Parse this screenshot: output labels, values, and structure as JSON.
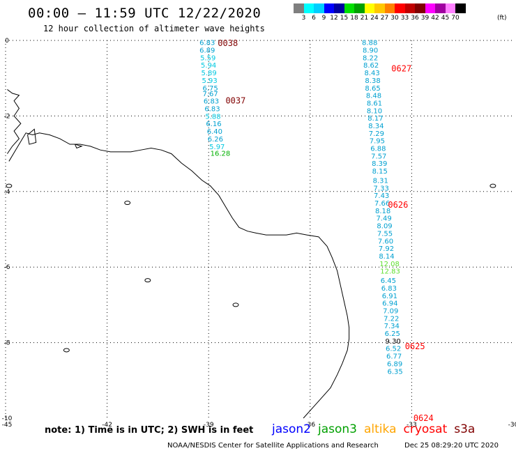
{
  "header": {
    "title": "00:00 — 11:59 UTC 12/22/2020",
    "subtitle": "12 hour collection of altimeter wave heights"
  },
  "legend": {
    "unit": "(ft)",
    "colors": [
      "#7f7f7f",
      "#00ffff",
      "#00cfff",
      "#0000ff",
      "#0000a0",
      "#00e000",
      "#00a000",
      "#ffff00",
      "#ffc800",
      "#ff8000",
      "#ff0000",
      "#c00000",
      "#800000",
      "#ff00ff",
      "#a000a0",
      "#ff80ff",
      "#000000"
    ],
    "labels": [
      "3",
      "6",
      "9",
      "12",
      "15",
      "18",
      "21",
      "24",
      "27",
      "30",
      "33",
      "36",
      "39",
      "42",
      "45",
      "70"
    ]
  },
  "map": {
    "x_ticks": [
      "-45",
      "-42",
      "-39",
      "-36",
      "-33",
      "-30"
    ],
    "y_ticks": [
      "0",
      "-2",
      "-4",
      "-6",
      "-8",
      "-10"
    ]
  },
  "tracks": [
    {
      "name": "left-track",
      "points": [
        {
          "lon": -39.27,
          "lat": -0.05,
          "swh": "6.83",
          "color": "#00a0d0"
        },
        {
          "lon": -39.27,
          "lat": -0.25,
          "swh": "6.89",
          "color": "#00a0d0"
        },
        {
          "lon": -39.25,
          "lat": -0.45,
          "swh": "5.59",
          "color": "#00c8e0"
        },
        {
          "lon": -39.23,
          "lat": -0.65,
          "swh": "5.94",
          "color": "#00c8e0"
        },
        {
          "lon": -39.22,
          "lat": -0.85,
          "swh": "5.89",
          "color": "#00c8e0"
        },
        {
          "lon": -39.2,
          "lat": -1.05,
          "swh": "5.93",
          "color": "#00c8e0"
        },
        {
          "lon": -39.18,
          "lat": -1.25,
          "swh": "6.75",
          "color": "#00a0d0"
        },
        {
          "lon": -39.18,
          "lat": -1.4,
          "swh": "7.67",
          "color": "#00a0d0"
        },
        {
          "lon": -39.15,
          "lat": -1.6,
          "swh": "6.83",
          "color": "#00a0d0"
        },
        {
          "lon": -39.12,
          "lat": -1.8,
          "swh": "6.83",
          "color": "#00a0d0"
        },
        {
          "lon": -39.1,
          "lat": -2.0,
          "swh": "5.88",
          "color": "#00c8e0"
        },
        {
          "lon": -39.08,
          "lat": -2.2,
          "swh": "6.16",
          "color": "#00a0d0"
        },
        {
          "lon": -39.05,
          "lat": -2.4,
          "swh": "6.40",
          "color": "#00a0d0"
        },
        {
          "lon": -39.03,
          "lat": -2.6,
          "swh": "6.26",
          "color": "#00a0d0"
        },
        {
          "lon": -38.98,
          "lat": -2.8,
          "swh": "5.97",
          "color": "#00c8e0"
        },
        {
          "lon": -38.95,
          "lat": -2.98,
          "swh": "16.28",
          "color": "#00b000"
        }
      ],
      "times": [
        {
          "lon": -38.73,
          "lat": -0.07,
          "text": "0038",
          "color": "#800000"
        },
        {
          "lon": -38.5,
          "lat": -1.6,
          "text": "0037",
          "color": "#800000"
        }
      ]
    },
    {
      "name": "right-track",
      "points": [
        {
          "lon": -34.47,
          "lat": -0.05,
          "swh": "8.88",
          "color": "#00a0d0"
        },
        {
          "lon": -34.45,
          "lat": -0.25,
          "swh": "8.90",
          "color": "#00a0d0"
        },
        {
          "lon": -34.45,
          "lat": -0.45,
          "swh": "8.22",
          "color": "#00a0d0"
        },
        {
          "lon": -34.43,
          "lat": -0.65,
          "swh": "8.62",
          "color": "#00a0d0"
        },
        {
          "lon": -34.4,
          "lat": -0.85,
          "swh": "8.43",
          "color": "#00a0d0"
        },
        {
          "lon": -34.38,
          "lat": -1.05,
          "swh": "8.38",
          "color": "#00a0d0"
        },
        {
          "lon": -34.38,
          "lat": -1.25,
          "swh": "8.65",
          "color": "#00a0d0"
        },
        {
          "lon": -34.35,
          "lat": -1.45,
          "swh": "8.48",
          "color": "#00a0d0"
        },
        {
          "lon": -34.33,
          "lat": -1.65,
          "swh": "8.61",
          "color": "#00a0d0"
        },
        {
          "lon": -34.33,
          "lat": -1.85,
          "swh": "8.10",
          "color": "#00a0d0"
        },
        {
          "lon": -34.3,
          "lat": -2.05,
          "swh": "8.17",
          "color": "#00a0d0"
        },
        {
          "lon": -34.28,
          "lat": -2.25,
          "swh": "8.34",
          "color": "#00a0d0"
        },
        {
          "lon": -34.27,
          "lat": -2.45,
          "swh": "7.29",
          "color": "#00a0d0"
        },
        {
          "lon": -34.25,
          "lat": -2.65,
          "swh": "7.95",
          "color": "#00a0d0"
        },
        {
          "lon": -34.22,
          "lat": -2.85,
          "swh": "6.88",
          "color": "#00a0d0"
        },
        {
          "lon": -34.2,
          "lat": -3.05,
          "swh": "7.57",
          "color": "#00a0d0"
        },
        {
          "lon": -34.18,
          "lat": -3.25,
          "swh": "8.39",
          "color": "#00a0d0"
        },
        {
          "lon": -34.17,
          "lat": -3.45,
          "swh": "8.15",
          "color": "#00a0d0"
        },
        {
          "lon": -34.15,
          "lat": -3.7,
          "swh": "8.31",
          "color": "#00a0d0"
        },
        {
          "lon": -34.13,
          "lat": -3.9,
          "swh": "7.33",
          "color": "#00a0d0"
        },
        {
          "lon": -34.12,
          "lat": -4.1,
          "swh": "7.43",
          "color": "#00a0d0"
        },
        {
          "lon": -34.1,
          "lat": -4.3,
          "swh": "7.66",
          "color": "#00a0d0"
        },
        {
          "lon": -34.08,
          "lat": -4.5,
          "swh": "8.18",
          "color": "#00a0d0"
        },
        {
          "lon": -34.05,
          "lat": -4.7,
          "swh": "7.49",
          "color": "#00a0d0"
        },
        {
          "lon": -34.03,
          "lat": -4.9,
          "swh": "8.09",
          "color": "#00a0d0"
        },
        {
          "lon": -34.02,
          "lat": -5.1,
          "swh": "7.55",
          "color": "#00a0d0"
        },
        {
          "lon": -34.0,
          "lat": -5.3,
          "swh": "7.60",
          "color": "#00a0d0"
        },
        {
          "lon": -33.98,
          "lat": -5.5,
          "swh": "7.92",
          "color": "#00a0d0"
        },
        {
          "lon": -33.97,
          "lat": -5.7,
          "swh": "8.14",
          "color": "#00a0d0"
        },
        {
          "lon": -33.95,
          "lat": -5.9,
          "swh": "12.08",
          "color": "#60e030"
        },
        {
          "lon": -33.93,
          "lat": -6.1,
          "swh": "12.83",
          "color": "#60e030"
        },
        {
          "lon": -33.92,
          "lat": -6.35,
          "swh": "6.45",
          "color": "#00a0d0"
        },
        {
          "lon": -33.9,
          "lat": -6.55,
          "swh": "6.83",
          "color": "#00a0d0"
        },
        {
          "lon": -33.88,
          "lat": -6.75,
          "swh": "6.91",
          "color": "#00a0d0"
        },
        {
          "lon": -33.87,
          "lat": -6.95,
          "swh": "6.94",
          "color": "#00a0d0"
        },
        {
          "lon": -33.85,
          "lat": -7.15,
          "swh": "7.09",
          "color": "#00a0d0"
        },
        {
          "lon": -33.83,
          "lat": -7.35,
          "swh": "7.22",
          "color": "#00a0d0"
        },
        {
          "lon": -33.82,
          "lat": -7.55,
          "swh": "7.34",
          "color": "#00a0d0"
        },
        {
          "lon": -33.8,
          "lat": -7.75,
          "swh": "6.25",
          "color": "#00a0d0"
        },
        {
          "lon": -33.78,
          "lat": -7.95,
          "swh": "9.30",
          "color": "#000000"
        },
        {
          "lon": -33.77,
          "lat": -8.15,
          "swh": "6.52",
          "color": "#00a0d0"
        },
        {
          "lon": -33.75,
          "lat": -8.35,
          "swh": "6.77",
          "color": "#00a0d0"
        },
        {
          "lon": -33.73,
          "lat": -8.55,
          "swh": "6.89",
          "color": "#00a0d0"
        },
        {
          "lon": -33.72,
          "lat": -8.75,
          "swh": "6.35",
          "color": "#00a0d0"
        }
      ],
      "times": [
        {
          "lon": -33.6,
          "lat": -0.75,
          "text": "0627",
          "color": "#ff0000"
        },
        {
          "lon": -33.7,
          "lat": -4.35,
          "text": "0626",
          "color": "#ff0000"
        },
        {
          "lon": -33.2,
          "lat": -8.1,
          "text": "0625",
          "color": "#ff0000"
        },
        {
          "lon": -32.95,
          "lat": -10.0,
          "text": "0624",
          "color": "#ff0000"
        }
      ]
    }
  ],
  "note": "note: 1) Time is in UTC; 2) SWH is in feet",
  "satellites": [
    {
      "name": "jason2",
      "color": "#0000ff"
    },
    {
      "name": "jason3",
      "color": "#00a000"
    },
    {
      "name": "altika",
      "color": "#ffa500"
    },
    {
      "name": "cryosat",
      "color": "#ff0000"
    },
    {
      "name": "s3a",
      "color": "#800000"
    }
  ],
  "footer": {
    "credit": "NOAA/NESDIS Center for Satellite Applications and Research",
    "timestamp": "Dec 25 08:29:20 UTC 2020"
  }
}
